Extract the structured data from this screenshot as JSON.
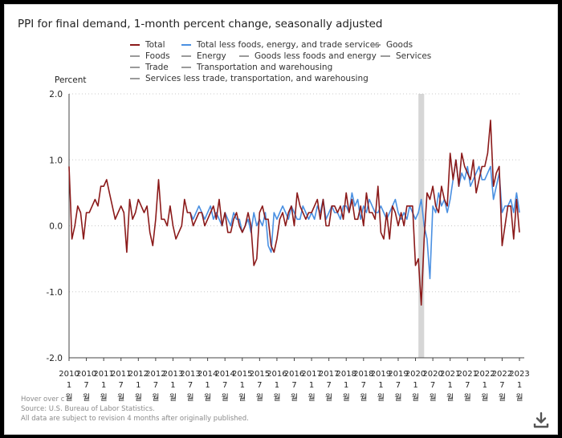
{
  "chart_title": "PPI for final demand, 1-month percent change, seasonally adjusted",
  "legend": [
    {
      "label": "Total",
      "color": "#8b1a1a"
    },
    {
      "label": "Total less foods, energy, and trade services",
      "color": "#4a90e2"
    },
    {
      "label": "Goods",
      "color": "#9a9a9a"
    },
    {
      "label": "Foods",
      "color": "#9a9a9a"
    },
    {
      "label": "Energy",
      "color": "#9a9a9a"
    },
    {
      "label": "Goods less foods and energy",
      "color": "#9a9a9a"
    },
    {
      "label": "Services",
      "color": "#9a9a9a"
    },
    {
      "label": "Trade",
      "color": "#9a9a9a"
    },
    {
      "label": "Transportation and warehousing",
      "color": "#9a9a9a"
    },
    {
      "label": "Services less trade, transportation, and warehousing",
      "color": "#9a9a9a"
    }
  ],
  "footer": {
    "hover_note": "Hover over c",
    "source": "Source: U.S. Bureau of Labor Statistics.",
    "revision": "All data are subject to revision 4 months after originally published."
  },
  "download_icon": "download-icon",
  "chart_data": {
    "type": "line",
    "title": "PPI for final demand, 1-month percent change, seasonally adjusted",
    "ylabel": "Percent",
    "ylim": [
      -2.0,
      2.0
    ],
    "y_ticks": [
      "2.0",
      "1.0",
      "0.0",
      "-1.0",
      "-2.0"
    ],
    "x_range": [
      "2010-01",
      "2023-01"
    ],
    "x_ticks": [
      {
        "t": "2010-01",
        "year": "2010",
        "month": "1",
        "suffix": "월"
      },
      {
        "t": "2010-07",
        "year": "2010",
        "month": "7",
        "suffix": "월"
      },
      {
        "t": "2011-01",
        "year": "2011",
        "month": "1",
        "suffix": "월"
      },
      {
        "t": "2011-07",
        "year": "2011",
        "month": "7",
        "suffix": "월"
      },
      {
        "t": "2012-01",
        "year": "2012",
        "month": "1",
        "suffix": "월"
      },
      {
        "t": "2012-07",
        "year": "2012",
        "month": "7",
        "suffix": "월"
      },
      {
        "t": "2013-01",
        "year": "2013",
        "month": "1",
        "suffix": "월"
      },
      {
        "t": "2013-07",
        "year": "2013",
        "month": "7",
        "suffix": "월"
      },
      {
        "t": "2014-01",
        "year": "2014",
        "month": "1",
        "suffix": "월"
      },
      {
        "t": "2014-07",
        "year": "2014",
        "month": "7",
        "suffix": "월"
      },
      {
        "t": "2015-01",
        "year": "2015",
        "month": "1",
        "suffix": "월"
      },
      {
        "t": "2015-07",
        "year": "2015",
        "month": "7",
        "suffix": "월"
      },
      {
        "t": "2016-01",
        "year": "2016",
        "month": "1",
        "suffix": "월"
      },
      {
        "t": "2016-07",
        "year": "2016",
        "month": "7",
        "suffix": "월"
      },
      {
        "t": "2017-01",
        "year": "2017",
        "month": "1",
        "suffix": "월"
      },
      {
        "t": "2017-07",
        "year": "2017",
        "month": "7",
        "suffix": "월"
      },
      {
        "t": "2018-01",
        "year": "2018",
        "month": "1",
        "suffix": "월"
      },
      {
        "t": "2018-07",
        "year": "2018",
        "month": "7",
        "suffix": "월"
      },
      {
        "t": "2019-01",
        "year": "2019",
        "month": "1",
        "suffix": "월"
      },
      {
        "t": "2019-07",
        "year": "2019",
        "month": "7",
        "suffix": "월"
      },
      {
        "t": "2020-01",
        "year": "2020",
        "month": "1",
        "suffix": "월"
      },
      {
        "t": "2020-07",
        "year": "2020",
        "month": "7",
        "suffix": "월"
      },
      {
        "t": "2021-01",
        "year": "2021",
        "month": "1",
        "suffix": "월"
      },
      {
        "t": "2021-07",
        "year": "2021",
        "month": "7",
        "suffix": "월"
      },
      {
        "t": "2022-01",
        "year": "2022",
        "month": "1",
        "suffix": "월"
      },
      {
        "t": "2022-07",
        "year": "2022",
        "month": "7",
        "suffix": "월"
      },
      {
        "t": "2023-01",
        "year": "2023",
        "month": "1",
        "suffix": "월"
      }
    ],
    "recession_band": [
      "2020-02",
      "2020-04"
    ],
    "grid": "horizontal dotted",
    "series": [
      {
        "name": "Total",
        "color": "#8b1a1a",
        "start": "2010-01",
        "values": [
          0.9,
          -0.2,
          0.0,
          0.3,
          0.2,
          -0.2,
          0.2,
          0.2,
          0.3,
          0.4,
          0.3,
          0.6,
          0.6,
          0.7,
          0.5,
          0.3,
          0.1,
          0.2,
          0.3,
          0.2,
          -0.4,
          0.4,
          0.1,
          0.2,
          0.4,
          0.3,
          0.2,
          0.3,
          -0.1,
          -0.3,
          0.1,
          0.7,
          0.1,
          0.1,
          0.0,
          0.3,
          0.0,
          -0.2,
          -0.1,
          0.0,
          0.4,
          0.2,
          0.2,
          0.0,
          0.1,
          0.2,
          0.2,
          0.0,
          0.1,
          0.2,
          0.3,
          0.1,
          0.4,
          0.0,
          0.2,
          -0.1,
          -0.1,
          0.1,
          0.2,
          0.0,
          -0.1,
          0.0,
          0.2,
          0.0,
          -0.6,
          -0.5,
          0.2,
          0.3,
          0.1,
          0.1,
          -0.3,
          -0.4,
          -0.2,
          0.1,
          0.2,
          0.0,
          0.2,
          0.3,
          0.0,
          0.5,
          0.3,
          0.2,
          0.1,
          0.2,
          0.2,
          0.3,
          0.4,
          0.1,
          0.4,
          0.0,
          0.0,
          0.3,
          0.3,
          0.2,
          0.3,
          0.1,
          0.5,
          0.2,
          0.4,
          0.1,
          0.1,
          0.3,
          0.0,
          0.5,
          0.2,
          0.2,
          0.1,
          0.6,
          -0.1,
          -0.2,
          0.2,
          -0.2,
          0.3,
          0.2,
          0.0,
          0.2,
          0.0,
          0.3,
          0.3,
          0.3,
          -0.6,
          -0.5,
          -1.2,
          -0.2,
          0.5,
          0.4,
          0.6,
          0.3,
          0.2,
          0.6,
          0.4,
          0.3,
          1.1,
          0.7,
          1.0,
          0.6,
          1.1,
          0.9,
          0.8,
          0.7,
          1.0,
          0.5,
          0.7,
          0.9,
          0.9,
          1.1,
          1.6,
          0.6,
          0.8,
          0.9,
          -0.3,
          0.0,
          0.3,
          0.3,
          -0.2,
          0.4,
          -0.1
        ]
      },
      {
        "name": "Total less foods, energy, and trade services",
        "color": "#4a90e2",
        "start": "2013-07",
        "values": [
          0.2,
          0.1,
          0.2,
          0.3,
          0.2,
          0.1,
          0.2,
          0.3,
          0.1,
          0.2,
          0.1,
          0.0,
          0.2,
          0.1,
          0.0,
          0.2,
          0.1,
          0.1,
          -0.1,
          0.0,
          0.1,
          -0.1,
          0.2,
          0.0,
          0.1,
          0.0,
          0.2,
          -0.3,
          -0.4,
          0.2,
          0.1,
          0.2,
          0.3,
          0.2,
          0.1,
          0.3,
          0.2,
          0.1,
          0.1,
          0.3,
          0.2,
          0.1,
          0.2,
          0.1,
          0.3,
          0.2,
          0.4,
          0.1,
          0.2,
          0.3,
          0.2,
          0.2,
          0.1,
          0.3,
          0.3,
          0.2,
          0.5,
          0.3,
          0.4,
          0.1,
          0.3,
          0.2,
          0.4,
          0.3,
          0.2,
          0.2,
          0.3,
          0.2,
          0.1,
          0.2,
          0.3,
          0.4,
          0.2,
          0.1,
          0.2,
          0.1,
          0.3,
          0.2,
          0.1,
          0.2,
          0.4,
          0.0,
          -0.2,
          -0.8,
          0.3,
          0.2,
          0.5,
          0.3,
          0.4,
          0.2,
          0.4,
          0.7,
          1.0,
          0.6,
          0.8,
          0.7,
          0.9,
          0.6,
          0.7,
          0.8,
          0.9,
          0.7,
          0.7,
          0.8,
          0.9,
          0.4,
          0.6,
          0.8,
          0.2,
          0.3,
          0.3,
          0.4,
          0.2,
          0.5,
          0.2
        ]
      }
    ]
  }
}
